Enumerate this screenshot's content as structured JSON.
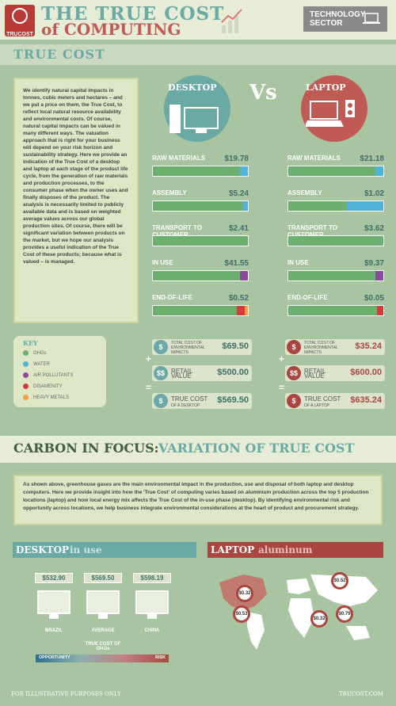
{
  "header": {
    "logo_text": "TRUCOST",
    "title_line1": "THE TRUE COST",
    "title_line2": "of COMPUTING",
    "sector": "TECHNOLOGY SECTOR"
  },
  "section1": {
    "title": "TRUE COST",
    "intro": "We identify natural capital impacts in tonnes, cubic meters and hectares – and we put a price on them, the True Cost, to reflect local natural resource availability and environmental costs. Of course, natural capital impacts can be valued in many different ways. The valuation approach that is right for your business will depend on your risk horizon and sustainability strategy. Here we provide an indication of the True Cost of a desktop and laptop at each stage of the product life cycle, from the generation of raw materials and production processes, to the consumer phase when the owner uses and finally disposes of the product. The analysis is necessarily limited to publicly available data and is based on weighted average values across our global production sites. Of course, there will be significant variation between products on the market, but we hope our analysis provides a useful indication of the True Cost of these products; because what is valued – is managed.",
    "desktop_label": "DESKTOP",
    "vs_label": "Vs",
    "laptop_label": "LAPTOP",
    "stages": [
      {
        "label": "RAW MATERIALS",
        "desktop": "$19.78",
        "laptop": "$21.18"
      },
      {
        "label": "ASSEMBLY",
        "desktop": "$5.24",
        "laptop": "$1.02"
      },
      {
        "label": "TRANSPORT TO CUSTOMER",
        "desktop": "$2.41",
        "laptop": "$3.62"
      },
      {
        "label": "IN USE",
        "desktop": "$41.55",
        "laptop": "$9.37"
      },
      {
        "label": "END-OF-LIFE",
        "desktop": "$0.52",
        "laptop": "$0.05"
      }
    ],
    "key": {
      "title": "KEY",
      "items": [
        {
          "label": "GHGs",
          "color": "#6bb06e"
        },
        {
          "label": "WATER",
          "color": "#52b3d9"
        },
        {
          "label": "AIR POLLUTANTS",
          "color": "#8a4a9a"
        },
        {
          "label": "DISAMENITY",
          "color": "#d33b3b"
        },
        {
          "label": "HEAVY METALS",
          "color": "#f0a040"
        }
      ]
    },
    "totals": {
      "env_label": "TOTAL COST OF ENVIRONMENTAL IMPACTS",
      "retail_label": "RETAIL VALUE",
      "true_label": "TRUE COST",
      "desktop_sub": "OF A DESKTOP",
      "laptop_sub": "OF A LAPTOP",
      "desktop_env": "$69.50",
      "desktop_retail": "$500.00",
      "desktop_true": "$569.50",
      "laptop_env": "$35.24",
      "laptop_retail": "$600.00",
      "laptop_true": "$635.24",
      "sym_dollar": "$",
      "sym_double": "$$",
      "plus": "+",
      "equals": "="
    }
  },
  "section2": {
    "title_a": "CARBON IN FOCUS:",
    "title_b": "VARIATION OF TRUE COST",
    "intro": "As shown above, greenhouse gases are the main environmental impact in the production, use and disposal of both laptop and desktop computers. Here we provide insight into how the 'True Cost' of computing varies based on aluminium production across the top 5 production locations (laptop) and how local energy mix affects the True Cost of the in-use phase (desktop). By identifying environmental risk and opportunity across locations, we help business integrate environmental considerations at the heart of product and procurement strategy.",
    "desktop_title": "DESKTOP",
    "desktop_sub": "in use",
    "laptop_title": "LAPTOP",
    "laptop_sub": "aluminum",
    "desktop_locations": [
      {
        "name": "BRAZIL",
        "value": "$532.90"
      },
      {
        "name": "AVERAGE",
        "value": "$569.50"
      },
      {
        "name": "CHINA",
        "value": "$598.19"
      }
    ],
    "scale_label": "TRUE COST OF GHGs",
    "opportunity": "OPPORTUNITY",
    "risk": "RISK",
    "map_values": [
      "$0.52",
      "$0.32",
      "$0.53",
      "$0.32",
      "$0.79"
    ]
  },
  "footer": {
    "left": "FOR ILLUSTRATIVE PURPOSES ONLY",
    "right": "TRUCOST.COM"
  }
}
